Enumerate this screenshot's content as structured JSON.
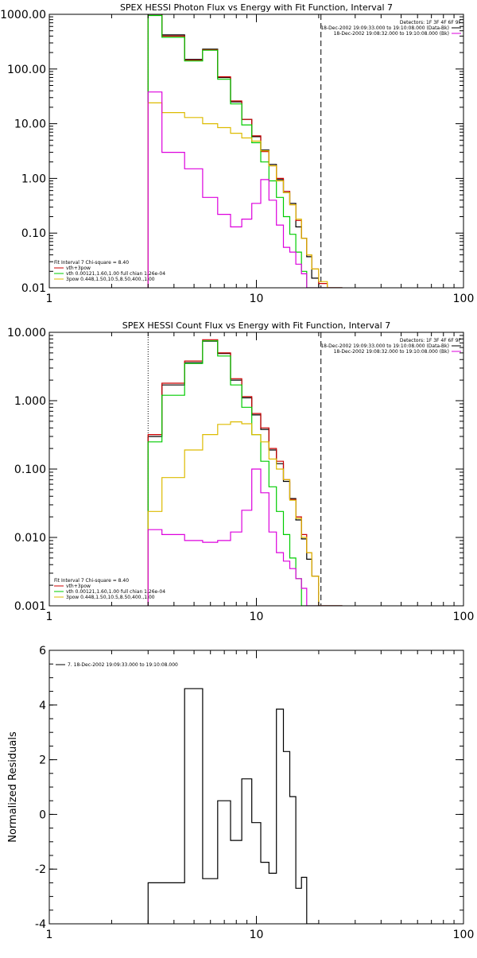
{
  "charts": [
    {
      "id": "photon",
      "type": "line",
      "title": "SPEX HESSI Photon Flux vs Energy with Fit Function, Interval 7",
      "xscale": "log",
      "yscale": "log",
      "xlim": [
        1,
        100
      ],
      "ylim": [
        0.01,
        1000
      ],
      "xticks": [
        {
          "v": 1,
          "label": "1"
        },
        {
          "v": 10,
          "label": "10"
        },
        {
          "v": 100,
          "label": "100"
        }
      ],
      "yticks": [
        {
          "v": 1000,
          "label": "1000.00"
        },
        {
          "v": 100,
          "label": "100.00"
        },
        {
          "v": 10,
          "label": "10.00"
        },
        {
          "v": 1,
          "label": "1.00"
        },
        {
          "v": 0.1,
          "label": "0.10"
        },
        {
          "v": 0.01,
          "label": "0.01"
        }
      ],
      "vlines": [
        {
          "x": 3,
          "style": "dotted",
          "color": "#000000"
        },
        {
          "x": 20.5,
          "style": "dashed",
          "color": "#000000"
        }
      ],
      "legend_top": {
        "lines": [
          {
            "text": "Detectors: 1F 3F 4F 6F 9F",
            "color": null
          },
          {
            "text": "18-Dec-2002 19:09:33.000 to 19:10:08.000 (Data-Bk)",
            "color": "#000000"
          },
          {
            "text": "18-Dec-2002 19:08:32.000 to 19:10:08.000 (Bk)",
            "color": "#dd00dd"
          }
        ]
      },
      "legend_bottom": {
        "lines": [
          {
            "text": "Fit Interval 7   Chi-square = 8.40",
            "color": null
          },
          {
            "text": "vth+3pow",
            "color": "#cc0000"
          },
          {
            "text": "vth 0.00121,1.60,1.00  full chian 1.26e-04",
            "color": "#00cc00"
          },
          {
            "text": "3pow 0.448,1.50,10.5,8.50,400.,1.00",
            "color": "#ddbb00"
          }
        ]
      },
      "edges": [
        3,
        3.5,
        4.5,
        5.5,
        6.5,
        7.5,
        8.5,
        9.5,
        10.5,
        11.5,
        12.5,
        13.5,
        14.5,
        15.5,
        16.5,
        17.5,
        18.5,
        20,
        22,
        24,
        26,
        28
      ],
      "series": [
        {
          "name": "Data-Bk",
          "color": "#000000",
          "values": [
            1000,
            420,
            150,
            230,
            70,
            25,
            12,
            5.8,
            3.3,
            1.8,
            0.95,
            0.55,
            0.35,
            0.13,
            0.08,
            0.037,
            0.015,
            0.0098,
            0.0098,
            0.0098
          ]
        },
        {
          "name": "vth+3pow",
          "color": "#cc0000",
          "values": [
            1000,
            400,
            145,
            225,
            72,
            26,
            12,
            6.0,
            3.1,
            1.7,
            1.0,
            0.58,
            0.33,
            0.17,
            0.08,
            0.04,
            0.022,
            0.012,
            0.0098,
            0.0098
          ]
        },
        {
          "name": "vth",
          "color": "#00cc00",
          "values": [
            950,
            380,
            140,
            220,
            65,
            23,
            9.5,
            4.5,
            2.0,
            0.9,
            0.45,
            0.2,
            0.095,
            0.045,
            0.02,
            0.0098,
            0.0098,
            0.0098,
            0.0098,
            0.0098
          ]
        },
        {
          "name": "3pow",
          "color": "#ddbb00",
          "values": [
            24,
            16,
            13,
            10,
            8.5,
            6.7,
            5.5,
            4.8,
            3.2,
            1.7,
            0.9,
            0.55,
            0.33,
            0.18,
            0.08,
            0.04,
            0.022,
            0.013,
            0.0098,
            0.0098
          ]
        },
        {
          "name": "Bk",
          "color": "#dd00dd",
          "values": [
            38,
            3.0,
            1.5,
            0.45,
            0.22,
            0.13,
            0.18,
            0.35,
            0.95,
            0.4,
            0.14,
            0.055,
            0.045,
            0.027,
            0.018,
            0.0098,
            0.0098,
            0.0098,
            0.0098,
            0.0098
          ]
        }
      ]
    },
    {
      "id": "count",
      "type": "line",
      "title": "SPEX HESSI Count Flux vs Energy with Fit Function, Interval 7",
      "xscale": "log",
      "yscale": "log",
      "xlim": [
        1,
        100
      ],
      "ylim": [
        0.001,
        10
      ],
      "xticks": [
        {
          "v": 1,
          "label": "1"
        },
        {
          "v": 10,
          "label": "10"
        },
        {
          "v": 100,
          "label": "100"
        }
      ],
      "yticks": [
        {
          "v": 10,
          "label": "10.000"
        },
        {
          "v": 1,
          "label": "1.000"
        },
        {
          "v": 0.1,
          "label": "0.100"
        },
        {
          "v": 0.01,
          "label": "0.010"
        },
        {
          "v": 0.001,
          "label": "0.001"
        }
      ],
      "vlines": [
        {
          "x": 3,
          "style": "dotted",
          "color": "#000000"
        },
        {
          "x": 20.5,
          "style": "dashed",
          "color": "#000000"
        }
      ],
      "legend_top": {
        "lines": [
          {
            "text": "Detectors: 1F 3F 4F 6F 9F",
            "color": null
          },
          {
            "text": "18-Dec-2002 19:09:33.000 to 19:10:08.000 (Data-Bk)",
            "color": "#000000"
          },
          {
            "text": "18-Dec-2002 19:08:32.000 to 19:10:08.000 (Bk)",
            "color": "#dd00dd"
          }
        ]
      },
      "legend_bottom": {
        "lines": [
          {
            "text": "Fit Interval 7   Chi-square = 8.40",
            "color": null
          },
          {
            "text": "vth+3pow",
            "color": "#cc0000"
          },
          {
            "text": "vth 0.00121,1.60,1.00  full chian 1.26e-04",
            "color": "#00cc00"
          },
          {
            "text": "3pow 0.448,1.50,10.5,8.50,400.,1.00",
            "color": "#ddbb00"
          }
        ]
      },
      "edges": [
        3,
        3.5,
        4.5,
        5.5,
        6.5,
        7.5,
        8.5,
        9.5,
        10.5,
        11.5,
        12.5,
        13.5,
        14.5,
        15.5,
        16.5,
        17.5,
        18.5,
        20,
        22,
        24,
        26,
        28
      ],
      "series": [
        {
          "name": "Data-Bk",
          "color": "#000000",
          "values": [
            0.3,
            1.7,
            3.6,
            7.4,
            4.9,
            2.0,
            1.1,
            0.62,
            0.38,
            0.19,
            0.12,
            0.066,
            0.037,
            0.018,
            0.0095,
            0.0048,
            0.0027,
            0.00099,
            0.00099,
            0.00099
          ]
        },
        {
          "name": "vth+3pow",
          "color": "#cc0000",
          "values": [
            0.32,
            1.8,
            3.8,
            7.8,
            5.0,
            2.1,
            1.15,
            0.65,
            0.4,
            0.2,
            0.13,
            0.07,
            0.036,
            0.02,
            0.011,
            0.006,
            0.0027,
            0.00099,
            0.00099,
            0.00099
          ]
        },
        {
          "name": "vth",
          "color": "#00cc00",
          "values": [
            0.25,
            1.2,
            3.5,
            7.5,
            4.5,
            1.7,
            0.8,
            0.32,
            0.13,
            0.055,
            0.024,
            0.011,
            0.005,
            0.0025,
            0.00099,
            0.00099,
            0.00099,
            0.00099,
            0.00099,
            0.00099
          ]
        },
        {
          "name": "3pow",
          "color": "#ddbb00",
          "values": [
            0.024,
            0.075,
            0.19,
            0.32,
            0.45,
            0.49,
            0.46,
            0.32,
            0.25,
            0.14,
            0.1,
            0.07,
            0.035,
            0.019,
            0.01,
            0.006,
            0.0027,
            0.00099,
            0.00099,
            0.00099
          ]
        },
        {
          "name": "Bk",
          "color": "#dd00dd",
          "values": [
            0.013,
            0.011,
            0.009,
            0.0085,
            0.009,
            0.012,
            0.025,
            0.1,
            0.045,
            0.012,
            0.006,
            0.0045,
            0.0035,
            0.0025,
            0.0018,
            0.00099,
            0.00099,
            0.00099,
            0.00099,
            0.00099
          ]
        }
      ]
    },
    {
      "id": "residuals",
      "type": "line",
      "title": "",
      "ylabel": "Normalized Residuals",
      "xscale": "log",
      "yscale": "linear",
      "xlim": [
        1,
        100
      ],
      "ylim": [
        -4,
        6
      ],
      "xticks": [
        {
          "v": 1,
          "label": "1"
        },
        {
          "v": 10,
          "label": "10"
        },
        {
          "v": 100,
          "label": "100"
        }
      ],
      "yticks": [
        {
          "v": 6,
          "label": "6"
        },
        {
          "v": 4,
          "label": "4"
        },
        {
          "v": 2,
          "label": "2"
        },
        {
          "v": 0,
          "label": "0"
        },
        {
          "v": -2,
          "label": "-2"
        },
        {
          "v": -4,
          "label": "-4"
        }
      ],
      "vlines": [],
      "legend_top": null,
      "legend_topleft": {
        "lines": [
          {
            "text": "7. 18-Dec-2002 19:09:33.000 to 19:10:08.000",
            "color": "#000000"
          }
        ]
      },
      "legend_bottom": null,
      "edges": [
        3,
        4,
        4.5,
        5.5,
        6.5,
        7.5,
        8.5,
        9.5,
        10.5,
        11.5,
        12.5,
        13.5,
        14.5,
        15.5,
        16.5,
        17.5,
        18.5,
        20
      ],
      "series": [
        {
          "name": "residuals",
          "color": "#000000",
          "values": [
            -2.5,
            -2.5,
            4.6,
            -2.35,
            0.5,
            -0.95,
            1.3,
            -0.3,
            -1.75,
            -2.15,
            3.85,
            2.3,
            0.65,
            -2.7,
            -2.3,
            -4.0,
            -4.0
          ]
        }
      ]
    }
  ]
}
